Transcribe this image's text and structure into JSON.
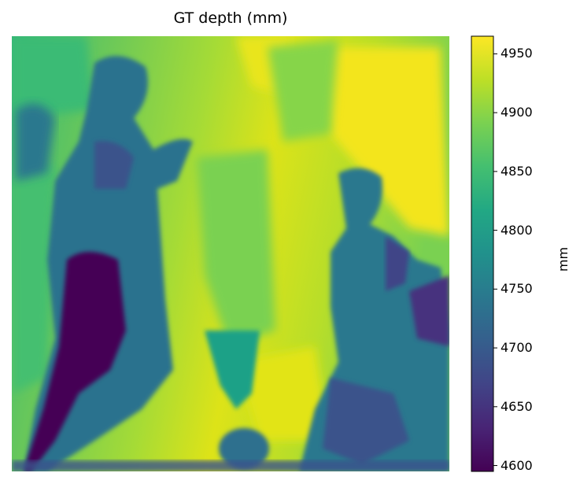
{
  "chart_data": {
    "type": "heatmap",
    "title": "GT depth (mm)",
    "xlabel": "",
    "ylabel": "",
    "axes_visible": false,
    "colormap": "viridis",
    "colorbar": {
      "label": "mm",
      "vmin": 4595,
      "vmax": 4965,
      "ticks": [
        4600,
        4650,
        4700,
        4750,
        4800,
        4850,
        4900,
        4950
      ],
      "tick_labels": [
        "4600",
        "4650",
        "4700",
        "4750",
        "4800",
        "4850",
        "4900",
        "4950"
      ]
    },
    "scene_description_values": {
      "background_range_mm": [
        4880,
        4960
      ],
      "figures_range_mm": [
        4600,
        4780
      ]
    }
  }
}
